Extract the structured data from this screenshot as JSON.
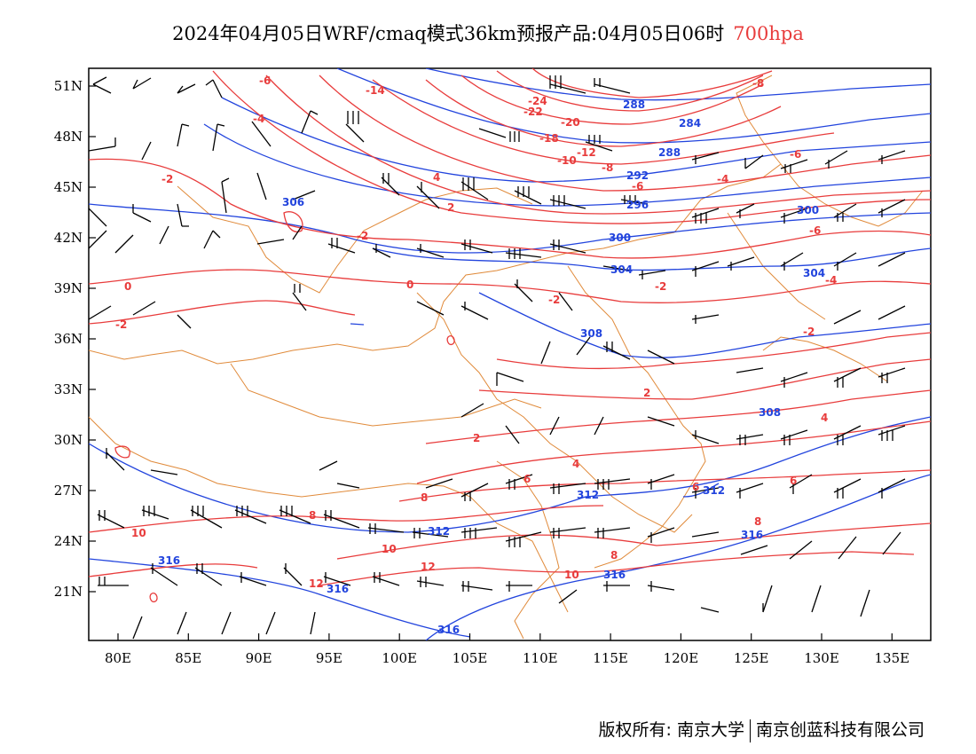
{
  "title": {
    "main": "2024年04月05日WRF/cmaq模式36km预报产品:04月05日06时",
    "level": "700hpa",
    "level_color": "#e83c3c"
  },
  "axes": {
    "lon_ticks": [
      "80E",
      "85E",
      "90E",
      "95E",
      "100E",
      "105E",
      "110E",
      "115E",
      "120E",
      "125E",
      "130E",
      "135E"
    ],
    "lat_ticks": [
      "51N",
      "48N",
      "45N",
      "42N",
      "39N",
      "36N",
      "33N",
      "30N",
      "27N",
      "24N",
      "21N"
    ]
  },
  "colors": {
    "temperature": "#e83c3c",
    "height": "#2244dd",
    "border": "#e08a3a",
    "wind": "#000000"
  },
  "chart_data": {
    "type": "map",
    "lon_range": [
      78,
      138
    ],
    "lat_range": [
      18,
      52
    ],
    "temperature_labels": [
      "-6",
      "-4",
      "-14",
      "-24",
      "-22",
      "-20",
      "-18",
      "-10",
      "-12",
      "-8",
      "-6",
      "-8",
      "-4",
      "-6",
      "-2",
      "-2",
      "0",
      "-2",
      "-2",
      "-2",
      "-4",
      "-6",
      "2",
      "4",
      "-2",
      "0",
      "2",
      "4",
      "2",
      "6",
      "4",
      "6",
      "8",
      "6",
      "8",
      "10",
      "10",
      "12",
      "10",
      "8",
      "12",
      "8"
    ],
    "height_labels": [
      "288",
      "284",
      "288",
      "292",
      "296",
      "300",
      "300",
      "304",
      "304",
      "308",
      "306",
      "308",
      "312",
      "312",
      "312",
      "316",
      "316",
      "316",
      "316",
      "316"
    ],
    "series": [
      {
        "name": "temperature",
        "color": "#e83c3c"
      },
      {
        "name": "height",
        "color": "#2244dd"
      }
    ]
  },
  "footer": {
    "left": "版权所有: 南京大学",
    "right": "南京创蓝科技有限公司"
  }
}
